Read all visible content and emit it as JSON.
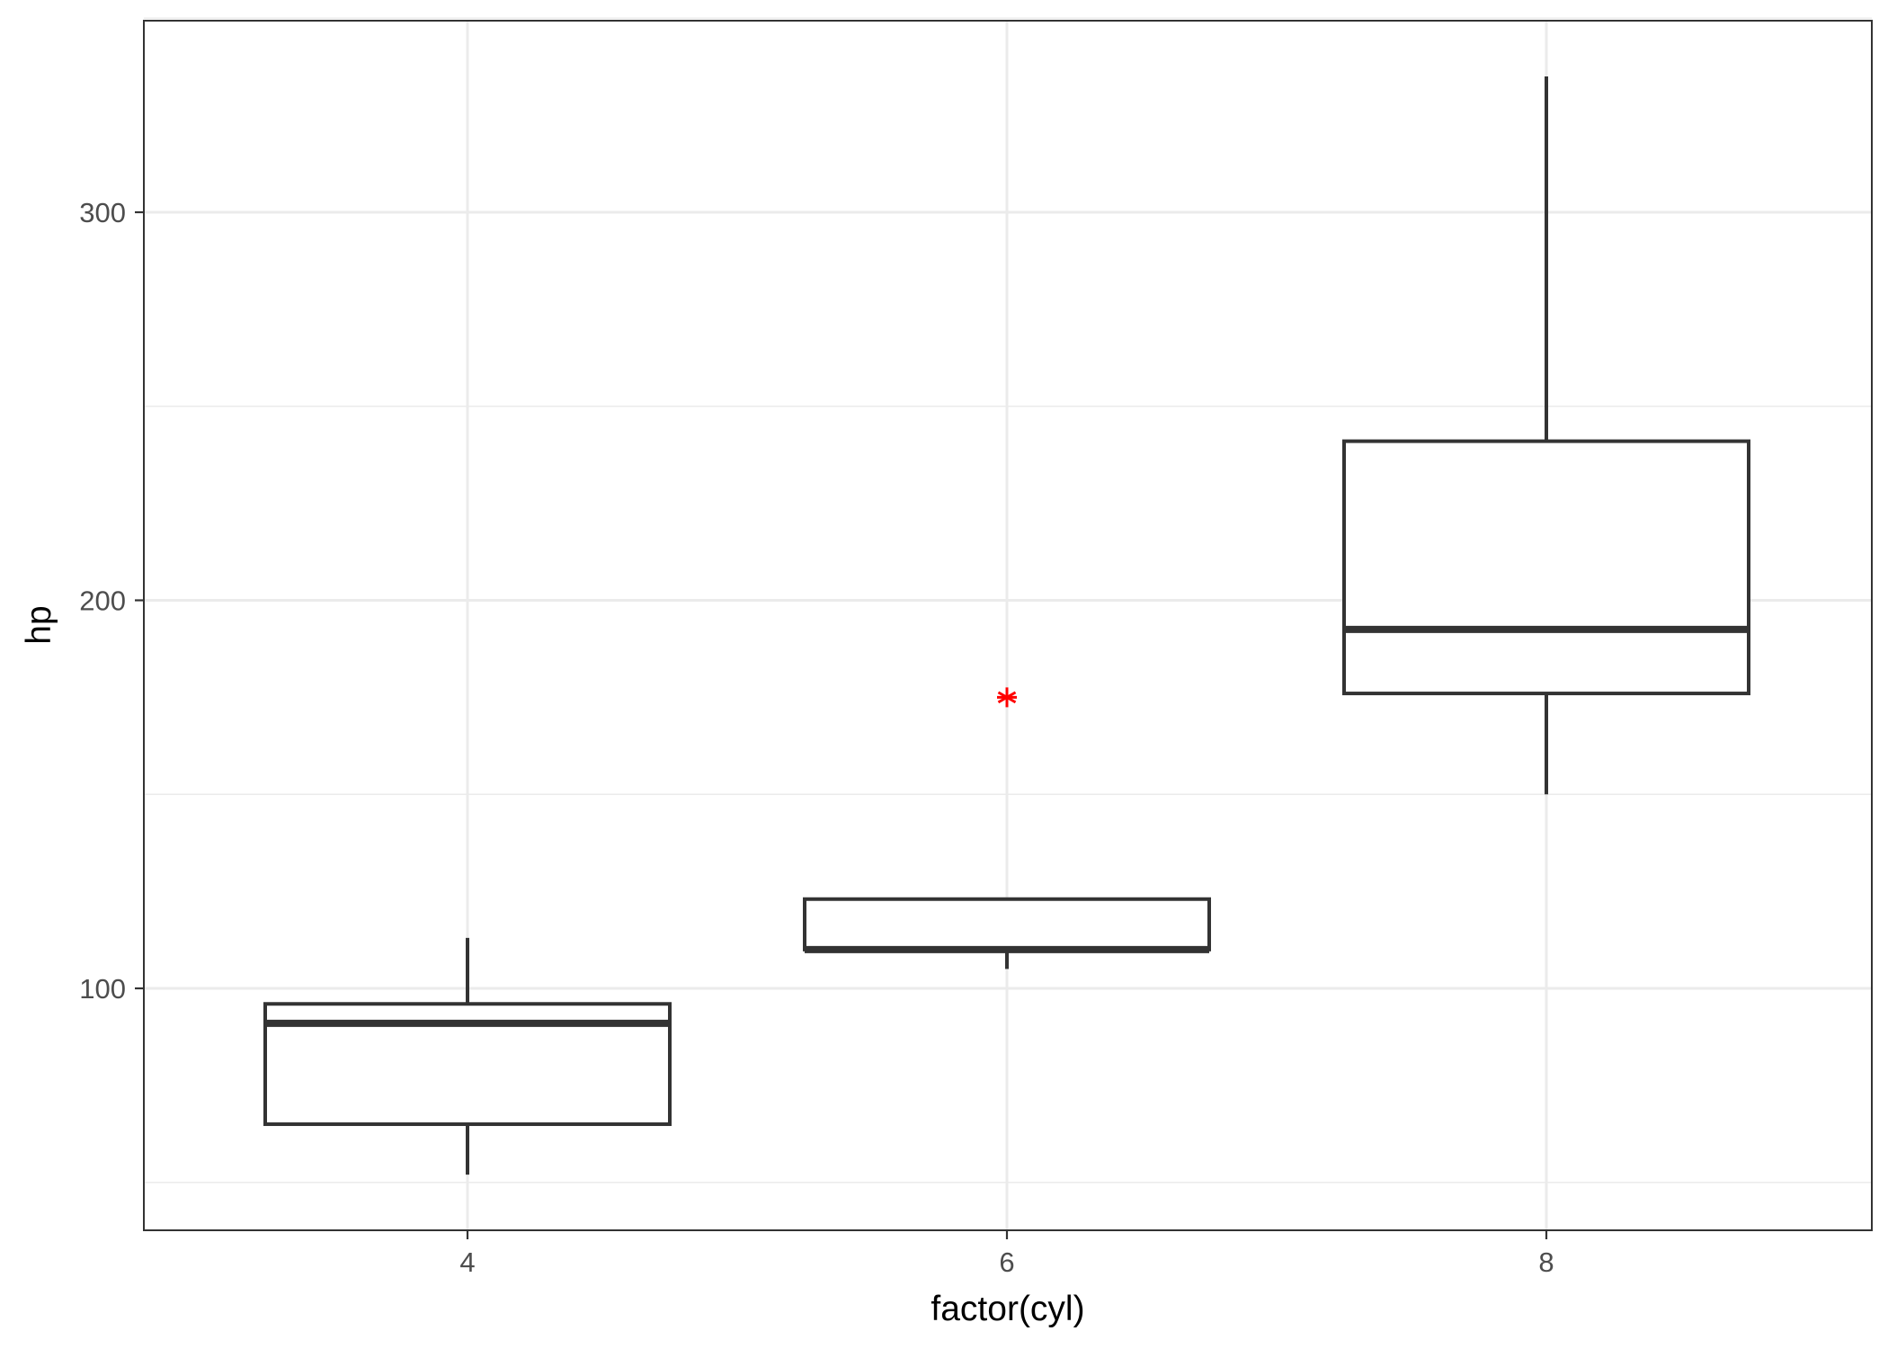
{
  "chart_data": {
    "type": "boxplot",
    "title": "",
    "xlabel": "factor(cyl)",
    "ylabel": "hp",
    "categories": [
      "4",
      "6",
      "8"
    ],
    "boxes": [
      {
        "category": "4",
        "lower_whisker": 52,
        "q1": 65,
        "median": 91,
        "q3": 96,
        "upper_whisker": 113
      },
      {
        "category": "6",
        "lower_whisker": 105,
        "q1": 110,
        "median": 110,
        "q3": 123,
        "upper_whisker": 123
      },
      {
        "category": "8",
        "lower_whisker": 150,
        "q1": 176,
        "median": 192.5,
        "q3": 241,
        "upper_whisker": 335
      }
    ],
    "points": [
      {
        "category": "6",
        "y": 175,
        "color": "#ff0000",
        "shape": "asterisk"
      }
    ],
    "yticks": [
      100,
      200,
      300
    ],
    "ylim": [
      40,
      351
    ],
    "grid": true,
    "colors": {
      "box_line": "#333333",
      "point": "#ff0000",
      "grid": "#ebebeb"
    }
  }
}
